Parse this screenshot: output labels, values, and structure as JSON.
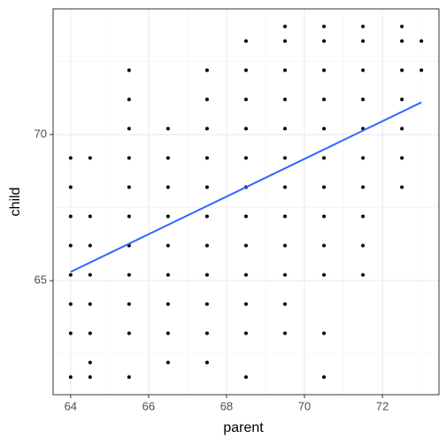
{
  "chart_data": {
    "type": "scatter",
    "xlabel": "parent",
    "ylabel": "child",
    "xlim": [
      63.55,
      73.45
    ],
    "ylim": [
      61.1,
      74.3
    ],
    "xticks": [
      64,
      66,
      68,
      70,
      72
    ],
    "yticks": [
      65,
      70
    ],
    "minor_xticks": [
      65,
      67,
      69,
      71,
      73
    ],
    "minor_yticks": [
      62.5,
      67.5,
      72.5
    ],
    "grid": true,
    "color": "#000000",
    "x": [
      64,
      64,
      64,
      64,
      64,
      64,
      64,
      64,
      64.5,
      64.5,
      64.5,
      64.5,
      64.5,
      64.5,
      64.5,
      64.5,
      65.5,
      65.5,
      65.5,
      65.5,
      65.5,
      65.5,
      65.5,
      65.5,
      65.5,
      65.5,
      65.5,
      66.5,
      66.5,
      66.5,
      66.5,
      66.5,
      66.5,
      66.5,
      66.5,
      66.5,
      67.5,
      67.5,
      67.5,
      67.5,
      67.5,
      67.5,
      67.5,
      67.5,
      67.5,
      67.5,
      67.5,
      68.5,
      68.5,
      68.5,
      68.5,
      68.5,
      68.5,
      68.5,
      68.5,
      68.5,
      68.5,
      68.5,
      68.5,
      69.5,
      69.5,
      69.5,
      69.5,
      69.5,
      69.5,
      69.5,
      69.5,
      69.5,
      69.5,
      69.5,
      69.5,
      70.5,
      70.5,
      70.5,
      70.5,
      70.5,
      70.5,
      70.5,
      70.5,
      70.5,
      70.5,
      70.5,
      70.5,
      71.5,
      71.5,
      71.5,
      71.5,
      71.5,
      71.5,
      71.5,
      71.5,
      71.5,
      71.5,
      72.5,
      72.5,
      72.5,
      72.5,
      72.5,
      72.5,
      72.5,
      73,
      73
    ],
    "y": [
      69.2,
      68.2,
      67.2,
      66.2,
      65.2,
      64.2,
      63.2,
      61.7,
      69.2,
      67.2,
      66.2,
      65.2,
      64.2,
      63.2,
      62.2,
      61.7,
      72.2,
      71.2,
      70.2,
      69.2,
      68.2,
      67.2,
      66.2,
      65.2,
      64.2,
      63.2,
      61.7,
      70.2,
      69.2,
      68.2,
      67.2,
      66.2,
      65.2,
      64.2,
      63.2,
      62.2,
      72.2,
      71.2,
      70.2,
      69.2,
      68.2,
      67.2,
      66.2,
      65.2,
      64.2,
      63.2,
      62.2,
      73.2,
      72.2,
      71.2,
      70.2,
      69.2,
      68.2,
      67.2,
      66.2,
      65.2,
      64.2,
      63.2,
      61.7,
      73.7,
      73.2,
      72.2,
      71.2,
      70.2,
      69.2,
      68.2,
      67.2,
      66.2,
      65.2,
      64.2,
      63.2,
      73.7,
      73.2,
      72.2,
      71.2,
      70.2,
      69.2,
      68.2,
      67.2,
      66.2,
      65.2,
      63.2,
      61.7,
      73.7,
      73.2,
      72.2,
      71.2,
      70.2,
      69.2,
      68.2,
      67.2,
      66.2,
      65.2,
      73.7,
      73.2,
      72.2,
      71.2,
      70.2,
      69.2,
      68.2,
      73.2,
      72.2
    ],
    "fit": {
      "color": "#3366ff",
      "x": [
        64,
        73
      ],
      "values": [
        65.3,
        71.1
      ]
    }
  }
}
